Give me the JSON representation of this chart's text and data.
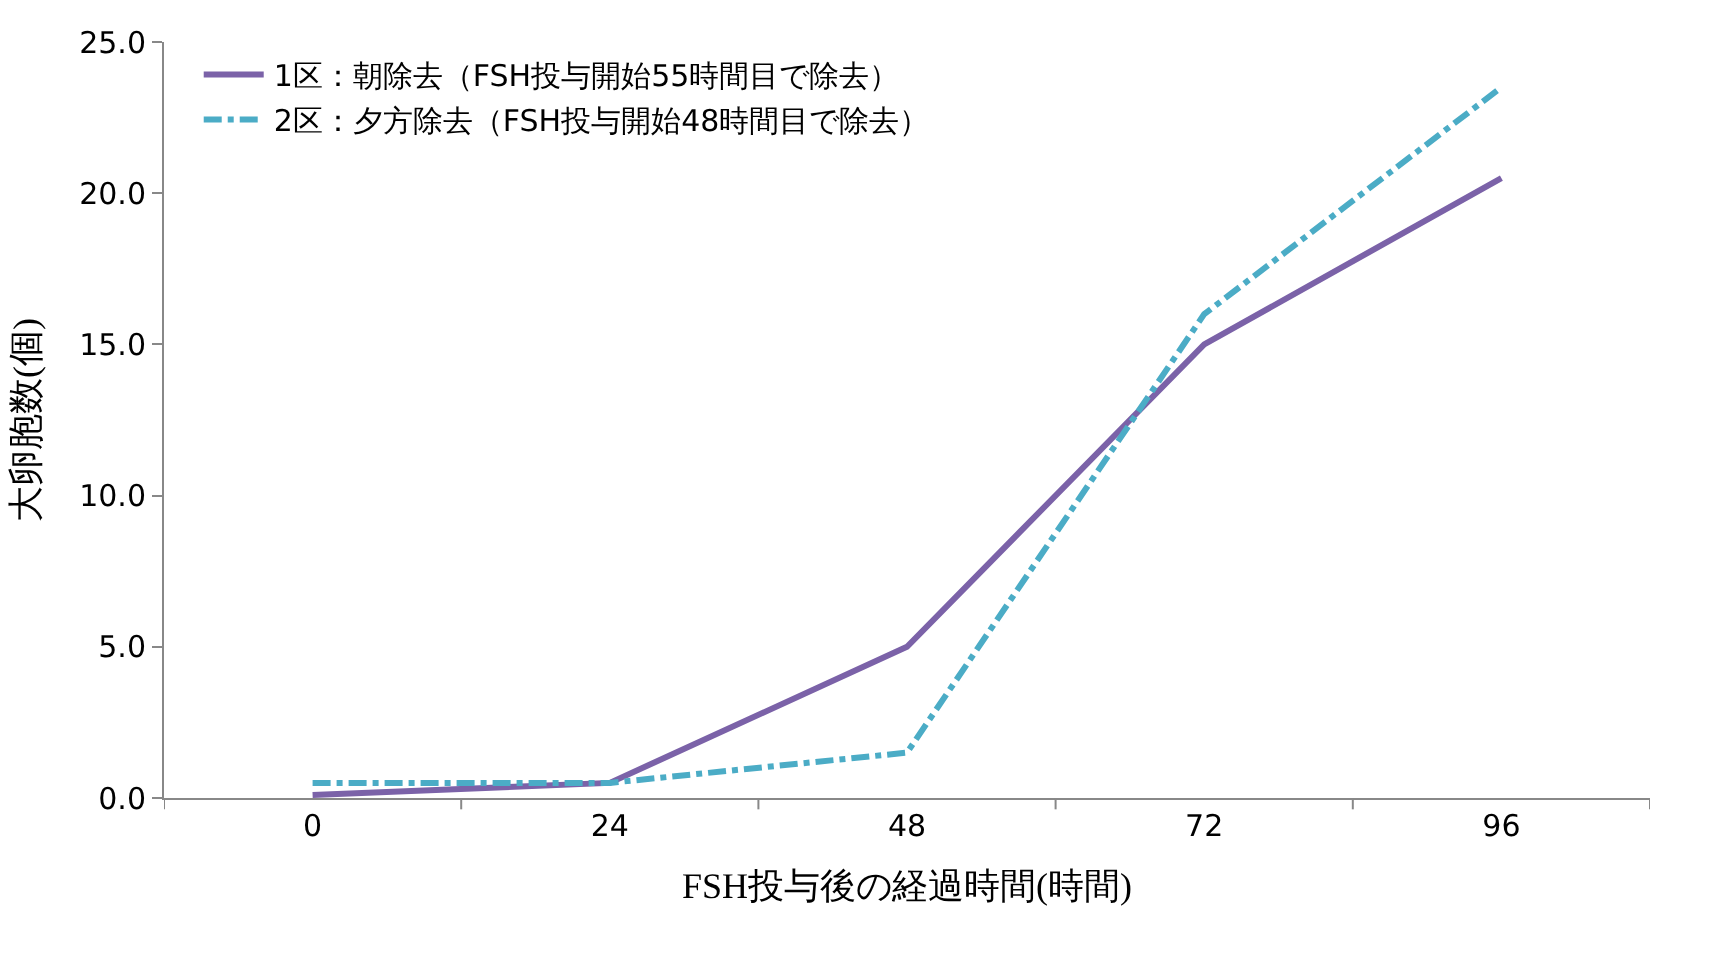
{
  "chart_data": {
    "type": "line",
    "xlabel": "FSH投与後の経過時間(時間)",
    "ylabel": "大卵胞数(個)",
    "categories": [
      "0",
      "24",
      "48",
      "72",
      "96"
    ],
    "series": [
      {
        "name": "1区：朝除去（FSH投与開始55時間目で除去）",
        "color": "#7b62a8",
        "line_style": "solid",
        "values": [
          0.1,
          0.5,
          5.0,
          15.0,
          20.5
        ]
      },
      {
        "name": "2区：夕方除去（FSH投与開始48時間目で除去）",
        "color": "#4bacc6",
        "line_style": "dashdot",
        "values": [
          0.5,
          0.5,
          1.5,
          16.0,
          23.5
        ]
      }
    ],
    "ylim": [
      0,
      25
    ],
    "yticks": [
      {
        "value": 0,
        "label": "0.0"
      },
      {
        "value": 5,
        "label": "5.0"
      },
      {
        "value": 10,
        "label": "10.0"
      },
      {
        "value": 15,
        "label": "15.0"
      },
      {
        "value": 20,
        "label": "20.0"
      },
      {
        "value": 25,
        "label": "25.0"
      }
    ],
    "legend": "top left",
    "marker": "none"
  }
}
